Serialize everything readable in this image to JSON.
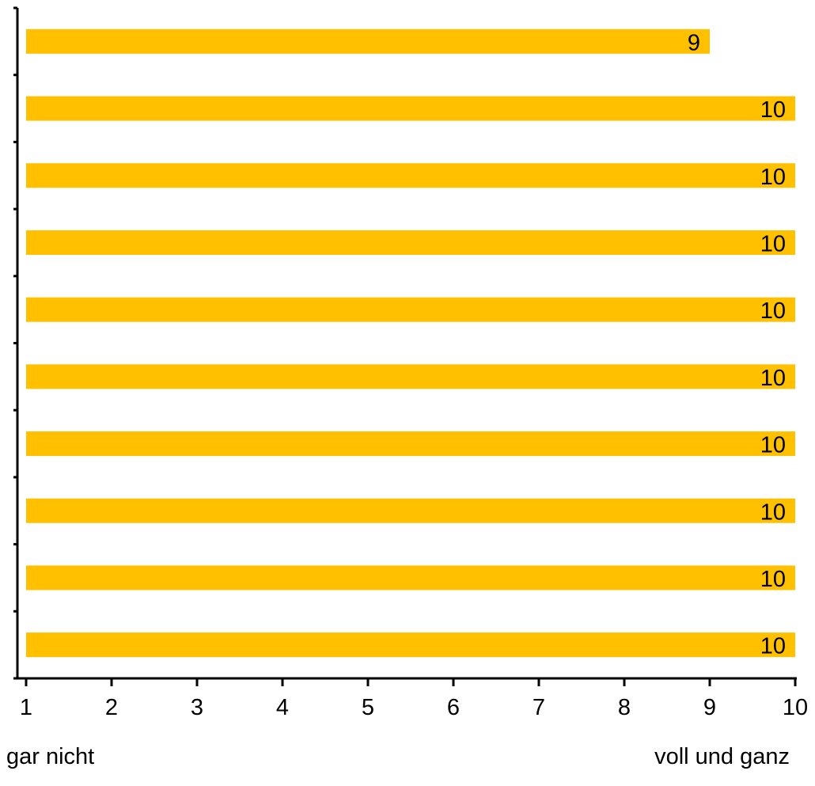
{
  "chart_data": {
    "type": "bar",
    "orientation": "horizontal",
    "values": [
      9,
      10,
      10,
      10,
      10,
      10,
      10,
      10,
      10,
      10
    ],
    "data_labels": [
      "9",
      "10",
      "10",
      "10",
      "10",
      "10",
      "10",
      "10",
      "10",
      "10"
    ],
    "xlim": [
      1,
      10
    ],
    "x_ticks": [
      "1",
      "2",
      "3",
      "4",
      "5",
      "6",
      "7",
      "8",
      "9",
      "10"
    ],
    "grid": false,
    "bar_color": "#FFC000",
    "axis_color": "#000000"
  },
  "scale_labels": {
    "low": "gar nicht",
    "high": "voll und ganz"
  }
}
